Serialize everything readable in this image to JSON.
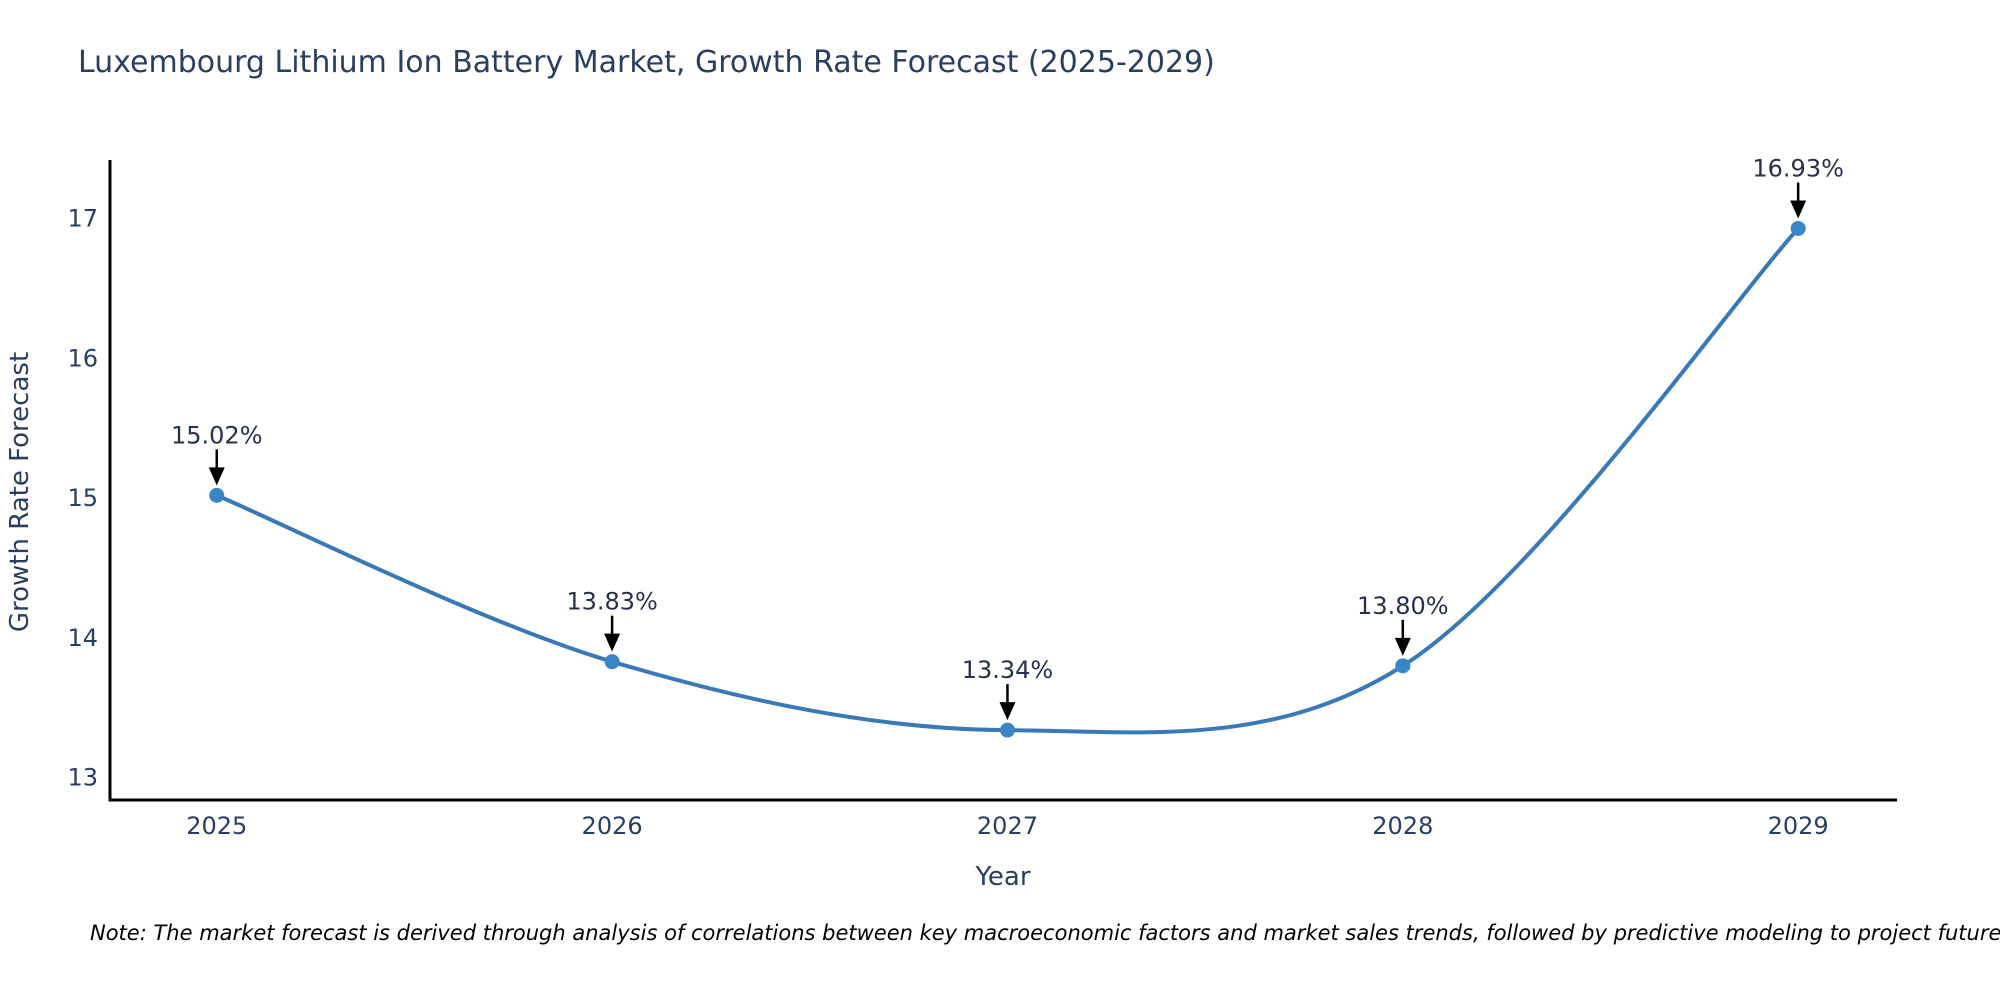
{
  "chart_data": {
    "type": "line",
    "title": "Luxembourg Lithium Ion Battery Market, Growth Rate Forecast (2025-2029)",
    "xlabel": "Year",
    "ylabel": "Growth Rate Forecast",
    "x": [
      2025,
      2026,
      2027,
      2028,
      2029
    ],
    "y": [
      15.02,
      13.83,
      13.34,
      13.8,
      16.93
    ],
    "point_labels": [
      "15.02%",
      "13.83%",
      "13.34%",
      "13.80%",
      "16.93%"
    ],
    "xticks": [
      "2025",
      "2026",
      "2027",
      "2028",
      "2029"
    ],
    "yticks": [
      13,
      14,
      15,
      16,
      17
    ],
    "xlim": [
      2024.73,
      2029.25
    ],
    "ylim": [
      12.84,
      17.42
    ],
    "line_shape": "spline",
    "grid": "off",
    "legend": "none",
    "line_color": "#3979b8",
    "marker_color": "#3a85c8",
    "axis_color": "#000000",
    "text_color": "#2a3f5f",
    "annotation_arrow_color": "#000000",
    "background_color": "#ffffff",
    "note": "Note: The market forecast is derived through analysis of correlations between key macroeconomic factors and market sales trends, followed by predictive modeling to project future sales."
  }
}
